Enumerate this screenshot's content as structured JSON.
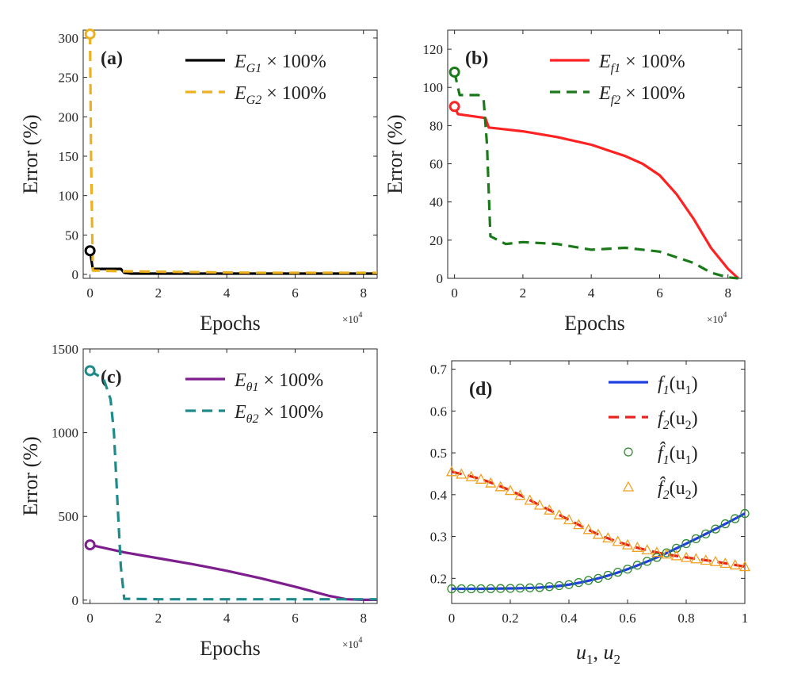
{
  "figure": {
    "panels": [
      "(a)",
      "(b)",
      "(c)",
      "(d)"
    ]
  },
  "chart_data": [
    {
      "type": "line",
      "label": "(a)",
      "xlabel": "Epochs",
      "ylabel": "Error (%)",
      "x_multiplier": "×10",
      "x_exponent": "4",
      "xlim": [
        -0.2,
        8.4
      ],
      "ylim": [
        -5,
        310
      ],
      "xticks": [
        0,
        2,
        4,
        6,
        8
      ],
      "yticks": [
        0,
        50,
        100,
        150,
        200,
        250,
        300
      ],
      "legend_position": "top-right",
      "series": [
        {
          "name": "E_G1 × 100%",
          "legend": {
            "main": "E",
            "sub": "G1",
            "tail": " × 100%"
          },
          "color": "#000000",
          "dash": "solid",
          "x": [
            0,
            0.08,
            0.9,
            1.0,
            1.2,
            3,
            5,
            8.4
          ],
          "y": [
            30,
            7,
            7,
            2,
            1,
            1,
            1,
            1
          ]
        },
        {
          "name": "E_G2 × 100%",
          "legend": {
            "main": "E",
            "sub": "G2",
            "tail": " × 100%"
          },
          "color": "#EDB120",
          "dash": "dashed",
          "x": [
            0,
            0.03,
            0.08,
            1,
            3,
            5,
            8.4
          ],
          "y": [
            305,
            150,
            5,
            4,
            3,
            2,
            2
          ]
        }
      ],
      "start_markers": [
        {
          "x": 0,
          "y": 30,
          "color": "#000000"
        },
        {
          "x": 0,
          "y": 305,
          "color": "#EDB120"
        }
      ]
    },
    {
      "type": "line",
      "label": "(b)",
      "xlabel": "Epochs",
      "ylabel": "Error (%)",
      "x_multiplier": "×10",
      "x_exponent": "4",
      "xlim": [
        -0.2,
        8.4
      ],
      "ylim": [
        0,
        130
      ],
      "xticks": [
        0,
        2,
        4,
        6,
        8
      ],
      "yticks": [
        0,
        20,
        40,
        60,
        80,
        100,
        120
      ],
      "legend_position": "top-right",
      "series": [
        {
          "name": "E_f1 × 100%",
          "legend": {
            "main": "E",
            "sub": "f1",
            "tail": " × 100%"
          },
          "color": "#FF2222",
          "dash": "solid",
          "x": [
            0,
            0.1,
            0.9,
            1.0,
            2,
            3,
            4,
            5,
            5.5,
            6,
            6.5,
            7,
            7.5,
            8,
            8.3
          ],
          "y": [
            90,
            86,
            84,
            79,
            77,
            74,
            70,
            64,
            60,
            54,
            44,
            31,
            16,
            5,
            0
          ]
        },
        {
          "name": "E_f2 × 100%",
          "legend": {
            "main": "E",
            "sub": "f2",
            "tail": " × 100%"
          },
          "color": "#1A7A1A",
          "dash": "dashed",
          "x": [
            0,
            0.15,
            0.7,
            0.85,
            0.95,
            1.05,
            1.5,
            2,
            3,
            4,
            5,
            6,
            7,
            7.5,
            8,
            8.3
          ],
          "y": [
            108,
            96,
            96,
            94,
            70,
            22,
            18,
            19,
            18,
            15,
            16,
            14,
            8,
            3,
            0.5,
            0
          ]
        }
      ],
      "start_markers": [
        {
          "x": 0,
          "y": 90,
          "color": "#FF2222"
        },
        {
          "x": 0,
          "y": 108,
          "color": "#1A7A1A"
        }
      ]
    },
    {
      "type": "line",
      "label": "(c)",
      "xlabel": "Epochs",
      "ylabel": "Error (%)",
      "x_multiplier": "×10",
      "x_exponent": "4",
      "xlim": [
        -0.2,
        8.4
      ],
      "ylim": [
        -20,
        1500
      ],
      "xticks": [
        0,
        2,
        4,
        6,
        8
      ],
      "yticks": [
        0,
        500,
        1000,
        1500
      ],
      "legend_position": "top-right",
      "series": [
        {
          "name": "E_θ1 × 100%",
          "legend": {
            "main": "E",
            "sub": "θ1",
            "tail": " × 100%"
          },
          "color": "#7E1E8E",
          "dash": "solid",
          "x": [
            0,
            1,
            2,
            3,
            4,
            5,
            6,
            7,
            7.5,
            8,
            8.4
          ],
          "y": [
            330,
            285,
            250,
            215,
            175,
            130,
            80,
            25,
            5,
            2,
            2
          ]
        },
        {
          "name": "E_θ2 × 100%",
          "legend": {
            "main": "E",
            "sub": "θ2",
            "tail": " × 100%"
          },
          "color": "#1E8A8A",
          "dash": "dashed",
          "x": [
            0,
            0.4,
            0.6,
            0.7,
            0.8,
            0.9,
            1.0,
            2,
            5,
            8.4
          ],
          "y": [
            1370,
            1320,
            1200,
            1000,
            600,
            200,
            8,
            5,
            5,
            5
          ]
        }
      ],
      "start_markers": [
        {
          "x": 0,
          "y": 330,
          "color": "#7E1E8E"
        },
        {
          "x": 0,
          "y": 1370,
          "color": "#1E8A8A"
        }
      ]
    },
    {
      "type": "line",
      "label": "(d)",
      "xlabel_parts": [
        "u",
        "1",
        ", ",
        "u",
        "2"
      ],
      "xlim": [
        0,
        1
      ],
      "ylim": [
        0.14,
        0.72
      ],
      "xticks": [
        0,
        0.2,
        0.4,
        0.6,
        0.8,
        1
      ],
      "yticks": [
        0.2,
        0.3,
        0.4,
        0.5,
        0.6,
        0.7
      ],
      "legend_position": "top-right",
      "series": [
        {
          "name": "f1(u1)",
          "legend": {
            "main": "f",
            "sub": "1",
            "tail": "(u",
            "sub2": "1",
            "end": ")"
          },
          "color": "#1F3FE0",
          "dash": "solid",
          "kind": "curve",
          "x": [
            0,
            0.1,
            0.2,
            0.3,
            0.4,
            0.5,
            0.6,
            0.7,
            0.8,
            0.9,
            1.0
          ],
          "y": [
            0.175,
            0.175,
            0.176,
            0.178,
            0.185,
            0.2,
            0.222,
            0.25,
            0.283,
            0.318,
            0.355
          ]
        },
        {
          "name": "f2(u2)",
          "legend": {
            "main": "f",
            "sub": "2",
            "tail": "(u",
            "sub2": "2",
            "end": ")"
          },
          "color": "#E8231E",
          "dash": "dashed",
          "kind": "curve",
          "x": [
            0,
            0.1,
            0.2,
            0.3,
            0.4,
            0.5,
            0.6,
            0.7,
            0.8,
            0.9,
            1.0
          ],
          "y": [
            0.455,
            0.437,
            0.41,
            0.375,
            0.34,
            0.305,
            0.28,
            0.262,
            0.25,
            0.24,
            0.228
          ]
        },
        {
          "name": "f̂1(u1)",
          "legend": {
            "main": "f̂",
            "sub": "1",
            "tail": "(u",
            "sub2": "1",
            "end": ")"
          },
          "color": "#2E8B2E",
          "kind": "circles",
          "x": [
            0,
            0.1,
            0.2,
            0.3,
            0.4,
            0.5,
            0.6,
            0.7,
            0.8,
            0.9,
            1.0
          ],
          "y": [
            0.175,
            0.175,
            0.176,
            0.178,
            0.185,
            0.2,
            0.222,
            0.25,
            0.283,
            0.318,
            0.355
          ]
        },
        {
          "name": "f̂2(u2)",
          "legend": {
            "main": "f̂",
            "sub": "2",
            "tail": "(u",
            "sub2": "2",
            "end": ")"
          },
          "color": "#F0A020",
          "kind": "triangles",
          "x": [
            0,
            0.1,
            0.2,
            0.3,
            0.4,
            0.5,
            0.6,
            0.7,
            0.8,
            0.9,
            1.0
          ],
          "y": [
            0.455,
            0.437,
            0.41,
            0.375,
            0.34,
            0.305,
            0.28,
            0.262,
            0.25,
            0.24,
            0.228
          ]
        }
      ],
      "marker_count": 31
    }
  ]
}
